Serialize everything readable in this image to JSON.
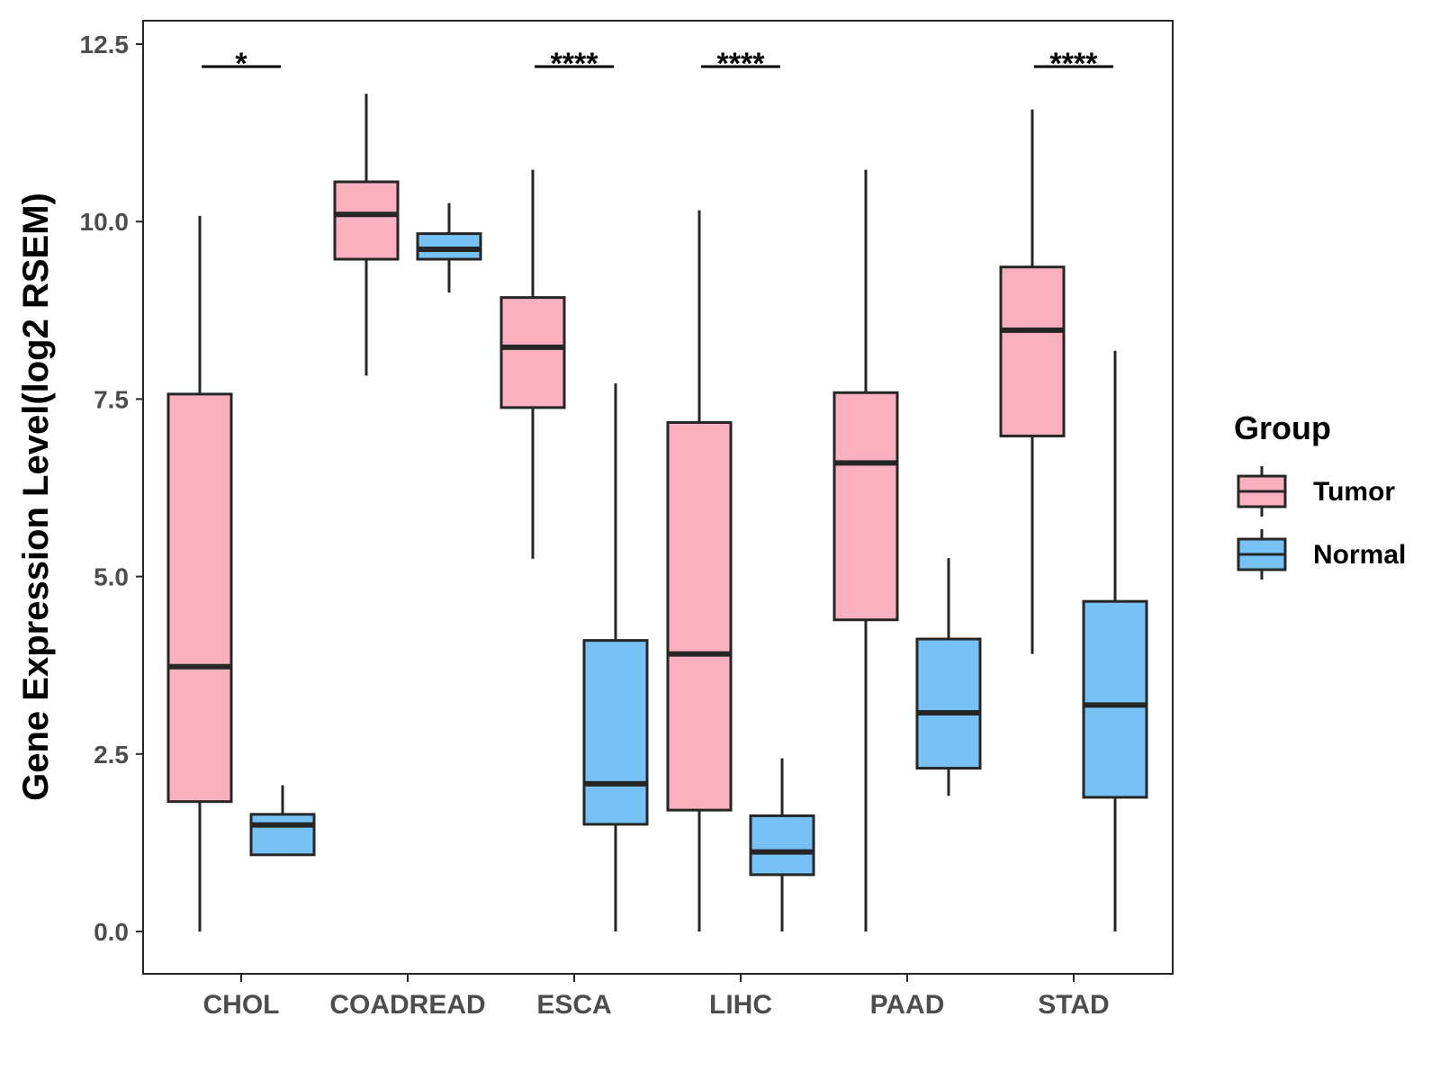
{
  "chart_data": {
    "type": "boxplot",
    "title": "",
    "xlabel": "",
    "ylabel": "Gene Expression Level(log2 RSEM)",
    "ylim": [
      -0.6,
      12.85
    ],
    "yticks": [
      0.0,
      2.5,
      5.0,
      7.5,
      10.0,
      12.5
    ],
    "ytick_labels": [
      "0.0",
      "2.5",
      "5.0",
      "7.5",
      "10.0",
      "12.5"
    ],
    "grid": false,
    "categories": [
      "CHOL",
      "COADREAD",
      "ESCA",
      "LIHC",
      "PAAD",
      "STAD"
    ],
    "legend": {
      "title": "Group",
      "position": "right",
      "entries": [
        "Tumor",
        "Normal"
      ]
    },
    "colors": {
      "Tumor": "#fbb0c0",
      "Normal": "#76c2f7",
      "outline": "#262626",
      "axis": "#262626"
    },
    "series": [
      {
        "name": "Tumor",
        "boxes": [
          {
            "min": 0.0,
            "q1": 1.83,
            "median": 3.73,
            "q3": 7.57,
            "max": 10.08
          },
          {
            "min": 7.83,
            "q1": 9.47,
            "median": 10.1,
            "q3": 10.56,
            "max": 11.8
          },
          {
            "min": 5.25,
            "q1": 7.38,
            "median": 8.23,
            "q3": 8.93,
            "max": 10.73
          },
          {
            "min": 0.0,
            "q1": 1.71,
            "median": 3.91,
            "q3": 7.17,
            "max": 10.16
          },
          {
            "min": 0.0,
            "q1": 4.39,
            "median": 6.6,
            "q3": 7.59,
            "max": 10.73
          },
          {
            "min": 3.91,
            "q1": 6.98,
            "median": 8.47,
            "q3": 9.36,
            "max": 11.58
          }
        ]
      },
      {
        "name": "Normal",
        "boxes": [
          {
            "min": 1.08,
            "q1": 1.08,
            "median": 1.5,
            "q3": 1.65,
            "max": 2.06
          },
          {
            "min": 9.0,
            "q1": 9.47,
            "median": 9.61,
            "q3": 9.83,
            "max": 10.26
          },
          {
            "min": 0.0,
            "q1": 1.51,
            "median": 2.08,
            "q3": 4.1,
            "max": 7.72
          },
          {
            "min": 0.0,
            "q1": 0.8,
            "median": 1.12,
            "q3": 1.63,
            "max": 2.44
          },
          {
            "min": 1.91,
            "q1": 2.3,
            "median": 3.08,
            "q3": 4.12,
            "max": 5.26
          },
          {
            "min": 0.0,
            "q1": 1.89,
            "median": 3.19,
            "q3": 4.65,
            "max": 8.18
          }
        ]
      }
    ],
    "annotations": [
      {
        "category": "CHOL",
        "label": "*"
      },
      {
        "category": "ESCA",
        "label": "****"
      },
      {
        "category": "LIHC",
        "label": "****"
      },
      {
        "category": "STAD",
        "label": "****"
      }
    ]
  }
}
